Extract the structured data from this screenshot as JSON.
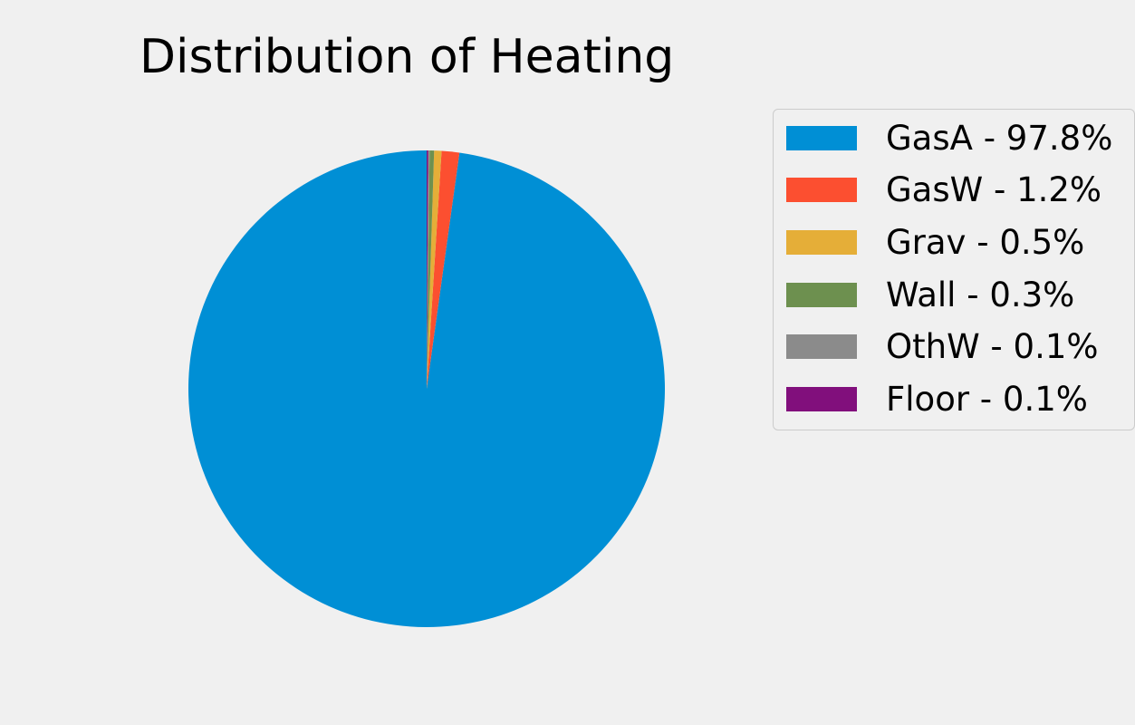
{
  "chart_data": {
    "type": "pie",
    "title": "Distribution of Heating",
    "labels": [
      "GasA",
      "GasW",
      "Grav",
      "Wall",
      "OthW",
      "Floor"
    ],
    "values": [
      97.8,
      1.2,
      0.5,
      0.3,
      0.1,
      0.1
    ],
    "legend_labels": [
      "GasA - 97.8%",
      "GasW - 1.2%",
      "Grav - 0.5%",
      "Wall - 0.3%",
      "OthW - 0.1%",
      "Floor - 0.1%"
    ],
    "colors": [
      "#008fd5",
      "#fc4f30",
      "#e5ae38",
      "#6d904f",
      "#8b8b8b",
      "#810f7c"
    ],
    "start_angle_deg": 90,
    "direction": "counterclockwise",
    "legend_position": "right"
  }
}
